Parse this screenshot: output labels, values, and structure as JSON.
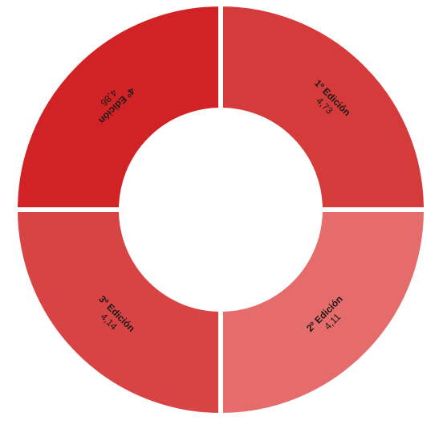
{
  "chart_data": {
    "type": "pie",
    "variant": "donut",
    "title": "",
    "categories": [
      "1º Edición",
      "2º Edición",
      "3º Edición",
      "4º Edición"
    ],
    "values": [
      4.73,
      4.11,
      4.14,
      4.86
    ],
    "value_labels": [
      "4,73",
      "4,11",
      "4,14",
      "4,86"
    ],
    "slice_share": [
      0.25,
      0.25,
      0.25,
      0.25
    ],
    "colors": [
      "#d63b3b",
      "#e66b6b",
      "#d84444",
      "#d12326"
    ],
    "legend": "none"
  }
}
